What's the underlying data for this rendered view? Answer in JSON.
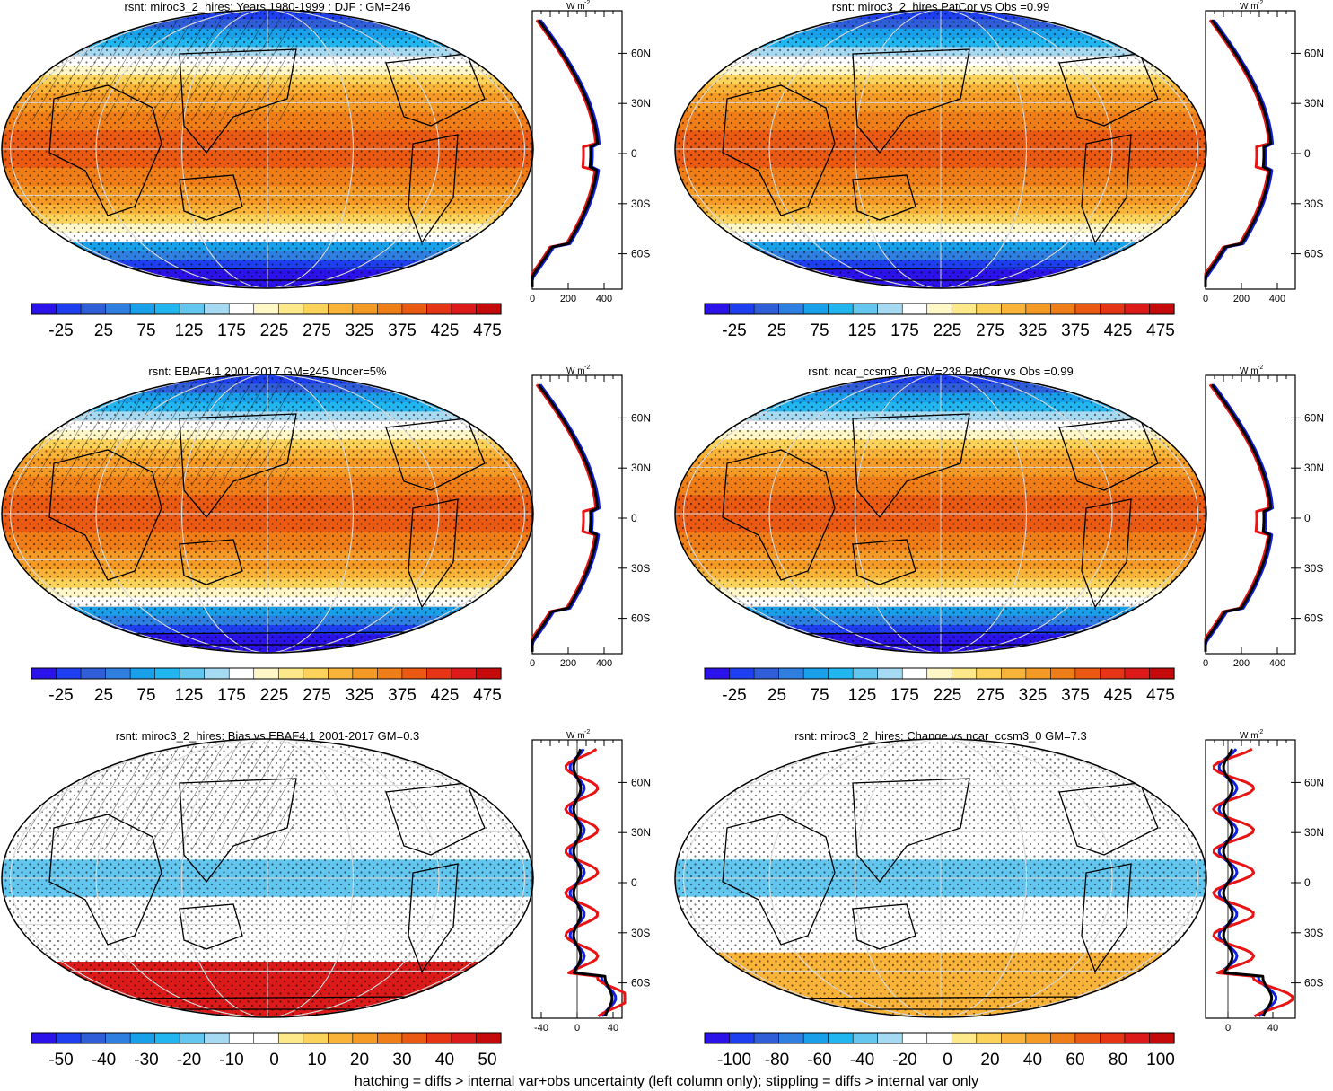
{
  "panels": [
    {
      "title": "rsnt: miroc3_2_hires: Years 1980-1999 : DJF : GM=246",
      "type": "abs",
      "colorbar": {
        "labels": [
          "-25",
          "25",
          "75",
          "125",
          "175",
          "225",
          "275",
          "325",
          "375",
          "425",
          "475"
        ]
      },
      "profile": {
        "unit": "W m-2",
        "xticks": [
          "0",
          "200",
          "400"
        ],
        "xrange": [
          0,
          500
        ],
        "yticks": [
          "60N",
          "30N",
          "0",
          "30S",
          "60S"
        ]
      }
    },
    {
      "title": "rsnt: miroc3_2_hires PatCor vs Obs =0.99",
      "type": "abs",
      "colorbar": {
        "labels": [
          "-25",
          "25",
          "75",
          "125",
          "175",
          "225",
          "275",
          "325",
          "375",
          "425",
          "475"
        ]
      },
      "profile": {
        "unit": "W m-2",
        "xticks": [
          "0",
          "200",
          "400"
        ],
        "xrange": [
          0,
          500
        ],
        "yticks": [
          "60N",
          "30N",
          "0",
          "30S",
          "60S"
        ]
      }
    },
    {
      "title": "rsnt: EBAF4.1 2001-2017 GM=245 Uncer=5%",
      "type": "abs",
      "colorbar": {
        "labels": [
          "-25",
          "25",
          "75",
          "125",
          "175",
          "225",
          "275",
          "325",
          "375",
          "425",
          "475"
        ]
      },
      "profile": {
        "unit": "W m-2",
        "xticks": [
          "0",
          "200",
          "400"
        ],
        "xrange": [
          0,
          500
        ],
        "yticks": [
          "60N",
          "30N",
          "0",
          "30S",
          "60S"
        ]
      }
    },
    {
      "title": "rsnt: ncar_ccsm3_0: GM=238 PatCor vs Obs =0.99",
      "type": "abs",
      "colorbar": {
        "labels": [
          "-25",
          "25",
          "75",
          "125",
          "175",
          "225",
          "275",
          "325",
          "375",
          "425",
          "475"
        ]
      },
      "profile": {
        "unit": "W m-2",
        "xticks": [
          "0",
          "200",
          "400"
        ],
        "xrange": [
          0,
          500
        ],
        "yticks": [
          "60N",
          "30N",
          "0",
          "30S",
          "60S"
        ]
      }
    },
    {
      "title": "rsnt: miroc3_2_hires: Bias vs EBAF4.1 2001-2017 GM=0.3",
      "type": "bias",
      "colorbar": {
        "labels": [
          "-50",
          "-40",
          "-30",
          "-20",
          "-10",
          "0",
          "10",
          "20",
          "30",
          "40",
          "50"
        ]
      },
      "profile": {
        "unit": "W m-2",
        "xticks": [
          "-40",
          "0",
          "40"
        ],
        "xrange": [
          -50,
          50
        ],
        "yticks": [
          "60N",
          "30N",
          "0",
          "30S",
          "60S"
        ]
      }
    },
    {
      "title": "rsnt: miroc3_2_hires: Change vs ncar_ccsm3_0 GM=7.3",
      "type": "change",
      "colorbar": {
        "labels": [
          "-100",
          "-80",
          "-60",
          "-40",
          "-20",
          "0",
          "20",
          "40",
          "60",
          "80",
          "100"
        ]
      },
      "profile": {
        "unit": "W m-2",
        "xticks": [
          "0",
          "40"
        ],
        "xrange": [
          -20,
          60
        ],
        "yticks": [
          "60N",
          "30N",
          "0",
          "30S",
          "60S"
        ]
      }
    }
  ],
  "colors": {
    "abs_scale": [
      "#2b12e8",
      "#1e3ff0",
      "#2f5ed8",
      "#2f7fe0",
      "#19a0ea",
      "#22b6f0",
      "#62c6ee",
      "#a6d9f2",
      "#ffffff",
      "#fff7c8",
      "#fde88a",
      "#fbd25a",
      "#f8b338",
      "#f59a25",
      "#f07e18",
      "#ea5a12",
      "#e53515",
      "#dc1a1a",
      "#c40a0a"
    ],
    "diff_scale": [
      "#2b12e8",
      "#1e3ff0",
      "#2f5ed8",
      "#2f7fe0",
      "#19a0ea",
      "#22b6f0",
      "#62c6ee",
      "#a6d9f2",
      "#ffffff",
      "#ffffff",
      "#fde88a",
      "#fbd25a",
      "#f8b338",
      "#f59a25",
      "#f07e18",
      "#ea5a12",
      "#e53515",
      "#dc1a1a",
      "#c40a0a"
    ],
    "model_line": "#e81414",
    "obs_line": "#1020e0",
    "mean_line": "#000000"
  },
  "footer": "hatching = diffs > internal var+obs uncertainty (left column only); stippling = diffs > internal var only"
}
